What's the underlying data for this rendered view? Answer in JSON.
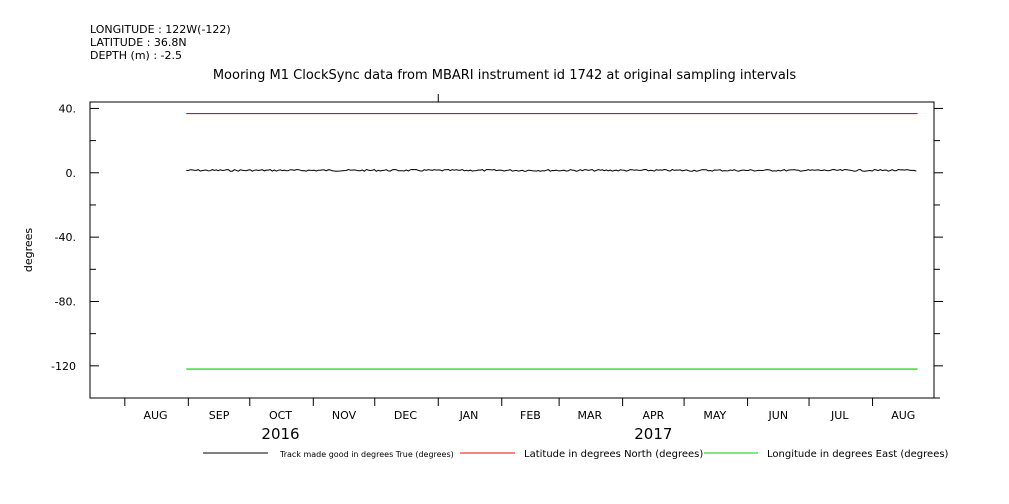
{
  "header": {
    "longitude": "LONGITUDE : 122W(-122)",
    "latitude": "LATITUDE : 36.8N",
    "depth": "DEPTH (m) : -2.5"
  },
  "chart_data": {
    "type": "line",
    "title": "Mooring M1 ClockSync data from MBARI instrument id 1742 at original sampling intervals",
    "xlabel": "",
    "ylabel": "degrees",
    "ylim": [
      -140,
      44
    ],
    "yticks": [
      40,
      0,
      -40,
      -80,
      -120
    ],
    "ytick_labels": [
      "40.",
      "0.",
      "-40.",
      "-80.",
      "-120"
    ],
    "xlim": [
      "2016-07-15",
      "2017-08-31"
    ],
    "month_labels": [
      "AUG",
      "SEP",
      "OCT",
      "NOV",
      "DEC",
      "JAN",
      "FEB",
      "MAR",
      "APR",
      "MAY",
      "JUN",
      "JUL",
      "AUG"
    ],
    "month_label_dates": [
      "2016-08-16",
      "2016-09-16",
      "2016-10-16",
      "2016-11-16",
      "2016-12-16",
      "2017-01-16",
      "2017-02-15",
      "2017-03-16",
      "2017-04-16",
      "2017-05-16",
      "2017-06-16",
      "2017-07-16",
      "2017-08-16"
    ],
    "year_labels": [
      {
        "label": "2016",
        "date": "2016-10-16"
      },
      {
        "label": "2017",
        "date": "2017-04-16"
      }
    ],
    "series": [
      {
        "name": "Track made good in degrees True (degrees)",
        "color": "#000000",
        "x": [
          "2016-08-31",
          "2017-08-23"
        ],
        "y": [
          1.5,
          1.5
        ]
      },
      {
        "name": "Latitude in degrees North (degrees)",
        "color": "#ff0000",
        "x": [
          "2016-08-31",
          "2017-08-23"
        ],
        "y": [
          36.8,
          36.8
        ]
      },
      {
        "name": "Longitude in degrees East (degrees)",
        "color": "#00cc00",
        "x": [
          "2016-08-31",
          "2017-08-23"
        ],
        "y": [
          -122,
          -122
        ]
      }
    ],
    "grid": false,
    "legend_position": "bottom"
  }
}
